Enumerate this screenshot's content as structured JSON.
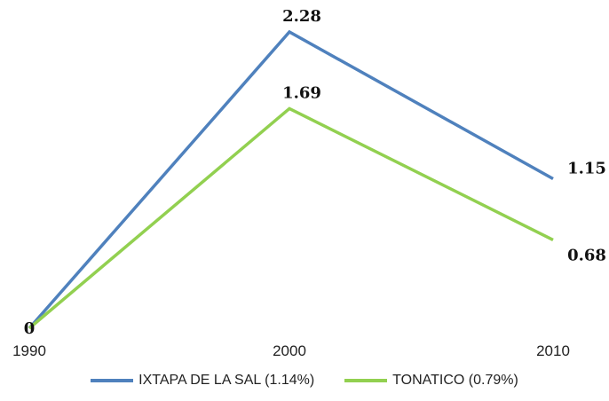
{
  "chart_data": {
    "type": "line",
    "x": [
      "1990",
      "2000",
      "2010"
    ],
    "series": [
      {
        "name": "IXTAPA DE LA SAL (1.14%)",
        "values": [
          0,
          2.28,
          1.15
        ],
        "value_labels": [
          "",
          "2.28",
          "1.15"
        ],
        "color": "#4f81bd"
      },
      {
        "name": "TONATICO (0.79%)",
        "values": [
          0,
          1.69,
          0.68
        ],
        "value_labels": [
          "0",
          "1.69",
          "0.68"
        ],
        "color": "#92d050"
      }
    ],
    "title": "",
    "xlabel": "",
    "ylabel": "",
    "ylim": [
      0,
      2.5
    ],
    "grid": false,
    "legend_position": "bottom"
  }
}
